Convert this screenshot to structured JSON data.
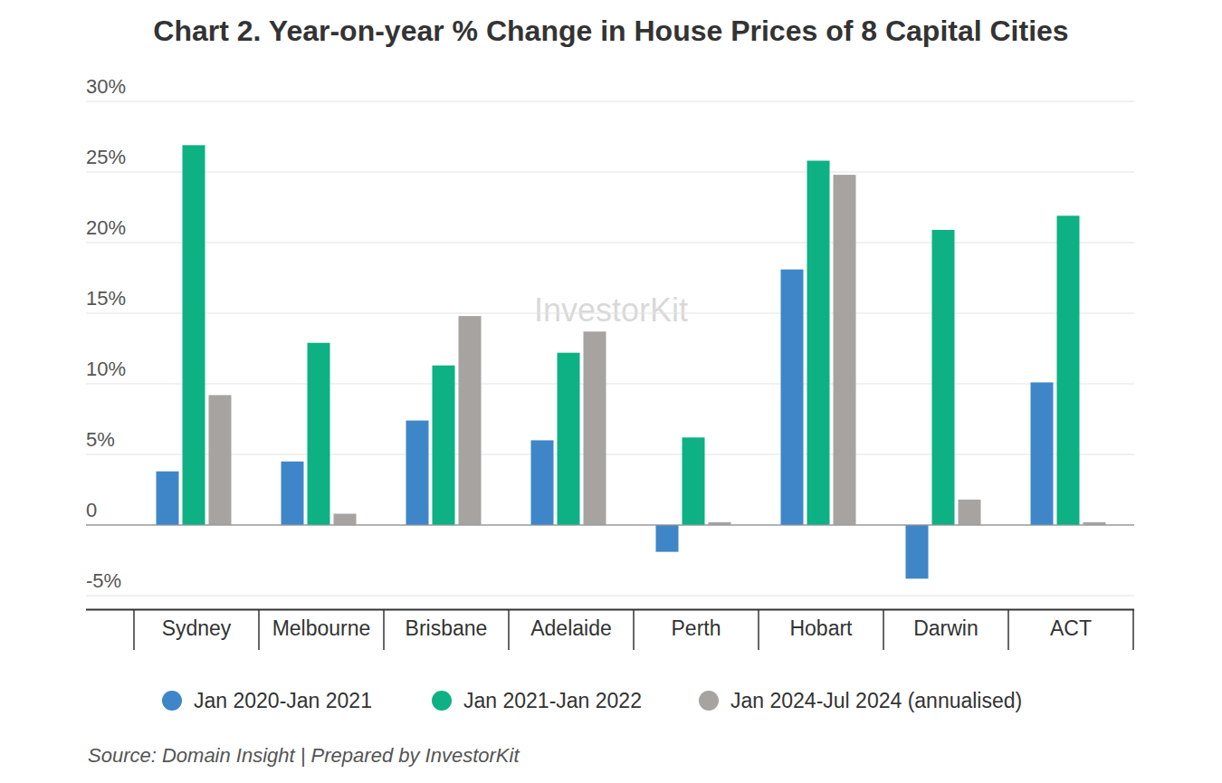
{
  "chart_data": {
    "type": "bar",
    "title": "Chart 2. Year-on-year % Change in House Prices of 8 Capital Cities",
    "source": "Source: Domain Insight | Prepared by InvestorKit",
    "annotations": [
      "InvestorKit"
    ],
    "categories": [
      "Sydney",
      "Melbourne",
      "Brisbane",
      "Adelaide",
      "Perth",
      "Hobart",
      "Darwin",
      "ACT"
    ],
    "series": [
      {
        "name": "Jan 2020-Jan 2021",
        "color": "#3f86c8",
        "values": [
          3.8,
          4.5,
          7.4,
          6.0,
          -1.9,
          18.1,
          -3.8,
          10.1
        ]
      },
      {
        "name": "Jan 2021-Jan 2022",
        "color": "#0db184",
        "values": [
          26.9,
          12.9,
          11.3,
          12.2,
          6.2,
          25.8,
          20.9,
          21.9
        ]
      },
      {
        "name": "Jan 2024-Jul 2024 (annualised)",
        "color": "#a6a3a1",
        "values": [
          9.2,
          0.8,
          14.8,
          13.7,
          0.2,
          24.8,
          1.8,
          0.2
        ]
      }
    ],
    "ylim": [
      -6,
      30
    ],
    "yticks": [
      {
        "value": -5,
        "label": "-5%"
      },
      0,
      {
        "value": 5,
        "label": "5%"
      },
      {
        "value": 10,
        "label": "10%"
      },
      {
        "value": 15,
        "label": "15%"
      },
      {
        "value": 20,
        "label": "20%"
      },
      {
        "value": 25,
        "label": "25%"
      },
      {
        "value": 30,
        "label": "30%"
      }
    ],
    "grid": true,
    "legend": "bottom"
  }
}
